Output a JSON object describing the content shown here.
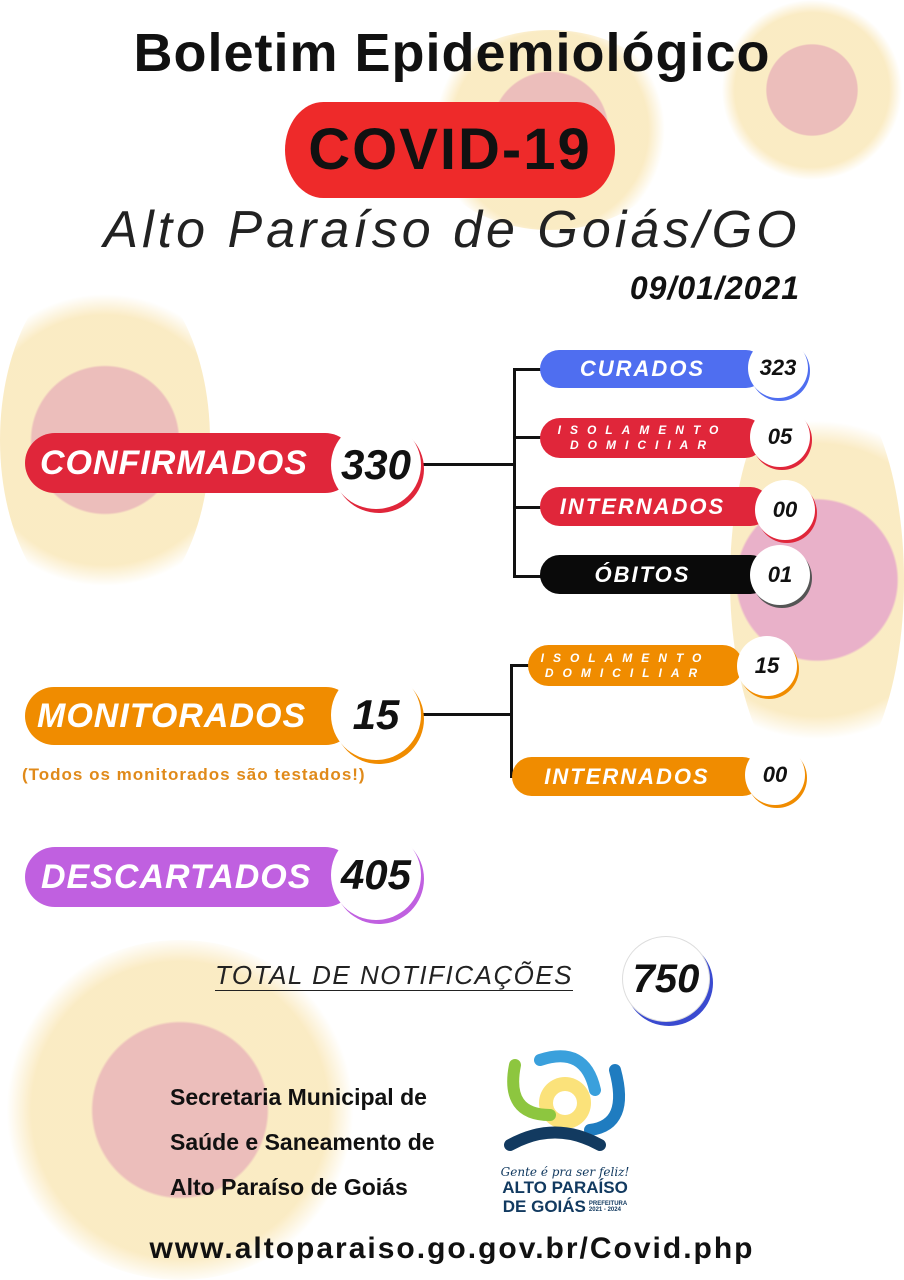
{
  "header": {
    "title": "Boletim Epidemiológico",
    "banner": "COVID-19",
    "city": "Alto Paraíso de Goiás/GO",
    "date": "09/01/2021"
  },
  "confirmados": {
    "label": "CONFIRMADOS",
    "value": "330",
    "color": "#e0263a",
    "breakdown": [
      {
        "label": "CURADOS",
        "value": "323",
        "color": "#4f6ef0"
      },
      {
        "label_line1": "ISOLAMENTO",
        "label_line2": "DOMICIIAR",
        "value": "05",
        "color": "#e0263a"
      },
      {
        "label": "INTERNADOS",
        "value": "00",
        "color": "#e0263a"
      },
      {
        "label": "ÓBITOS",
        "value": "01",
        "color": "#0a0a0a"
      }
    ]
  },
  "monitorados": {
    "label": "MONITORADOS",
    "value": "15",
    "color": "#f08c00",
    "note": "(Todos os monitorados são testados!)",
    "breakdown": [
      {
        "label_line1": "ISOLAMENTO",
        "label_line2": "DOMICILIAR",
        "value": "15"
      },
      {
        "label": "INTERNADOS",
        "value": "00"
      }
    ]
  },
  "descartados": {
    "label": "DESCARTADOS",
    "value": "405",
    "color": "#c060e0"
  },
  "total": {
    "label": "TOTAL DE NOTIFICAÇÕES",
    "value": "750"
  },
  "footer": {
    "line1": "Secretaria Municipal de",
    "line2": "Saúde e Saneamento de",
    "line3": "Alto Paraíso de Goiás",
    "url": "www.altoparaiso.go.gov.br/Covid.php"
  },
  "logo": {
    "slogan": "Gente é pra ser feliz!",
    "name1": "ALTO PARAÍSO",
    "name2": "DE GOIÁS",
    "sub": "PREFEITURA",
    "years": "2021 - 2024"
  }
}
